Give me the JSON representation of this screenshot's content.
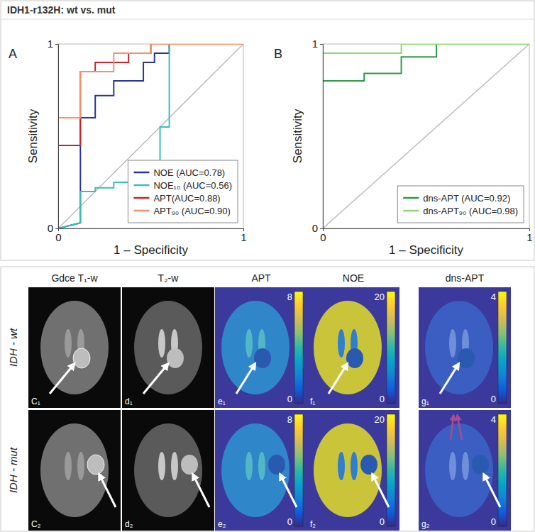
{
  "title": "IDH1-r132H: wt vs. mut",
  "chart_data": [
    {
      "type": "line",
      "panel_label": "A",
      "xlabel": "1 – Specificity",
      "ylabel": "Sensitivity",
      "xlim": [
        0,
        1
      ],
      "ylim": [
        0,
        1
      ],
      "xticks": [
        0,
        1
      ],
      "yticks": [
        0,
        1
      ],
      "grid": true,
      "legend": "lower right",
      "series": [
        {
          "name": "NOE (AUC=0.78)",
          "color": "#28348f",
          "x": [
            0,
            0.12,
            0.12,
            0.2,
            0.2,
            0.3,
            0.3,
            0.46,
            0.46,
            0.52,
            0.52,
            0.6,
            0.6,
            1
          ],
          "values": [
            0,
            0.03,
            0.6,
            0.6,
            0.72,
            0.72,
            0.8,
            0.8,
            0.9,
            0.9,
            0.95,
            0.95,
            1,
            1
          ]
        },
        {
          "name": "NOE₁₀ (AUC=0.56)",
          "color": "#3cbcbc",
          "x": [
            0,
            0.12,
            0.12,
            0.2,
            0.2,
            0.3,
            0.3,
            0.55,
            0.55,
            0.6,
            0.6,
            1
          ],
          "values": [
            0,
            0.03,
            0.2,
            0.2,
            0.22,
            0.22,
            0.25,
            0.25,
            0.55,
            0.55,
            1,
            1
          ]
        },
        {
          "name": "APT(AUC=0.88)",
          "color": "#c0262d",
          "x": [
            0,
            0,
            0.12,
            0.12,
            0.2,
            0.2,
            0.38,
            0.38,
            0.5,
            0.5,
            1
          ],
          "values": [
            0,
            0.45,
            0.45,
            0.85,
            0.85,
            0.9,
            0.9,
            0.95,
            0.95,
            1,
            1
          ]
        },
        {
          "name": "APT₉₀ (AUC=0.90)",
          "color": "#f2926d",
          "x": [
            0,
            0,
            0.12,
            0.12,
            0.3,
            0.3,
            0.5,
            0.5,
            1
          ],
          "values": [
            0,
            0.6,
            0.6,
            0.85,
            0.85,
            0.95,
            0.95,
            1,
            1
          ]
        }
      ]
    },
    {
      "type": "line",
      "panel_label": "B",
      "xlabel": "1 – Specificity",
      "ylabel": "Sensitivity",
      "xlim": [
        0,
        1
      ],
      "ylim": [
        0,
        1
      ],
      "xticks": [
        0,
        1
      ],
      "yticks": [
        0,
        1
      ],
      "grid": true,
      "legend": "lower right",
      "series": [
        {
          "name": "dns-APT (AUC=0.92)",
          "color": "#2e9a48",
          "x": [
            0,
            0,
            0.2,
            0.2,
            0.38,
            0.38,
            0.55,
            0.55,
            1
          ],
          "values": [
            0,
            0.8,
            0.8,
            0.84,
            0.84,
            0.93,
            0.93,
            1,
            1
          ]
        },
        {
          "name": "dns-APT₉₀ (AUC=0.98)",
          "color": "#8fd66c",
          "x": [
            0,
            0,
            0.38,
            0.38,
            1
          ],
          "values": [
            0,
            0.95,
            0.95,
            1,
            1
          ]
        }
      ]
    }
  ],
  "image_grid": {
    "columns": [
      {
        "header": "Gdce T₁-w"
      },
      {
        "header": "T₂-w"
      },
      {
        "header": "APT",
        "colorbar": {
          "range": [
            0,
            8
          ],
          "ticks": [
            0,
            8
          ]
        }
      },
      {
        "header": "NOE",
        "colorbar": {
          "range": [
            0,
            20
          ],
          "ticks": [
            0,
            20
          ]
        }
      },
      {
        "header": "dns-APT",
        "colorbar": {
          "range": [
            0,
            4
          ],
          "ticks": [
            0,
            4
          ]
        }
      }
    ],
    "rows": [
      {
        "label": "IDH - wt",
        "panel_labels": [
          "C₁",
          "d₁",
          "e₁",
          "f₁",
          "g₁"
        ]
      },
      {
        "label": "IDH - mut",
        "panel_labels": [
          "C₂",
          "d₂",
          "e₂",
          "f₂",
          "g₂"
        ]
      }
    ]
  }
}
